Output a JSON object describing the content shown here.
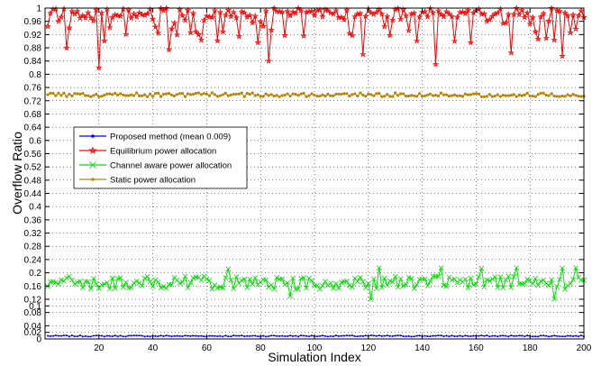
{
  "chart_data": {
    "type": "line",
    "title": "",
    "xlabel": "Simulation Index",
    "ylabel": "Overflow Ratio",
    "xlim": [
      0,
      200
    ],
    "ylim": [
      0,
      1
    ],
    "x_ticks": [
      20,
      40,
      60,
      80,
      100,
      120,
      140,
      160,
      180,
      200
    ],
    "y_ticks": [
      0,
      0.02,
      0.04,
      0.08,
      0.1,
      0.12,
      0.16,
      0.2,
      0.24,
      0.28,
      0.32,
      0.36,
      0.4,
      0.44,
      0.48,
      0.52,
      0.56,
      0.6,
      0.64,
      0.68,
      0.72,
      0.76,
      0.8,
      0.84,
      0.88,
      0.92,
      0.96,
      1
    ],
    "y_tick_labels": [
      "0",
      "0.02",
      "0.04",
      "0.08",
      "0.1",
      "0.12",
      "0.16",
      "0.2",
      "0.24",
      "0.28",
      "0.32",
      "0.36",
      "0.4",
      "0.44",
      "0.48",
      "0.52",
      "0.56",
      "0.6",
      "0.64",
      "0.68",
      "0.72",
      "0.76",
      "0.8",
      "0.84",
      "0.88",
      "0.92",
      "0.96",
      "1"
    ],
    "grid": true,
    "legend_position": "center-left",
    "series": [
      {
        "name": "Proposed method (mean 0.009)",
        "color": "#0000ff",
        "marker": "dot",
        "mean": 0.009,
        "amplitude": 0.002,
        "min": 0.006,
        "max": 0.012
      },
      {
        "name": "Equilibrium power allocation",
        "color": "#ff0000",
        "marker": "star",
        "mean": 0.955,
        "amplitude": 0.04,
        "min": 0.82,
        "max": 1.0
      },
      {
        "name": "Channel aware power allocation",
        "color": "#00e000",
        "marker": "x",
        "mean": 0.17,
        "amplitude": 0.02,
        "min": 0.12,
        "max": 0.215
      },
      {
        "name": "Static power allocation",
        "color": "#b8860b",
        "marker": "dot",
        "mean": 0.738,
        "amplitude": 0.006,
        "min": 0.725,
        "max": 0.752
      }
    ]
  }
}
